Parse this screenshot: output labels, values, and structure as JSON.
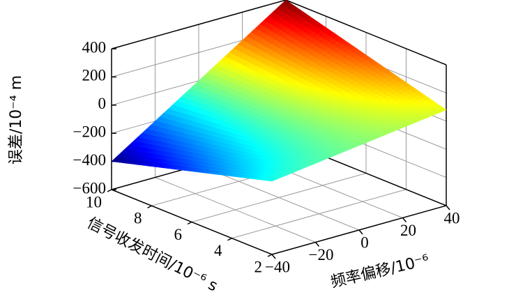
{
  "chart_data": {
    "type": "surface3d",
    "xlabel": "频率偏移/10⁻⁶",
    "ylabel": "信号收发时间/10⁻⁶ s",
    "zlabel": "误差/10⁻⁴ m",
    "x": [
      -40,
      -20,
      0,
      20,
      40
    ],
    "y": [
      2,
      4,
      6,
      8,
      10
    ],
    "z": [
      [
        -80,
        -40,
        0,
        40,
        80
      ],
      [
        -160,
        -80,
        0,
        80,
        160
      ],
      [
        -240,
        -120,
        0,
        120,
        240
      ],
      [
        -320,
        -160,
        0,
        160,
        320
      ],
      [
        -400,
        -200,
        0,
        200,
        400
      ]
    ],
    "xlim": [
      -40,
      40
    ],
    "ylim": [
      2,
      10
    ],
    "zlim": [
      -600,
      400
    ],
    "xticks": [
      {
        "value": -40,
        "label": "−40"
      },
      {
        "value": -20,
        "label": "−20"
      },
      0,
      20,
      40
    ],
    "yticks": [
      2,
      4,
      6,
      8,
      10
    ],
    "zticks": [
      {
        "value": -600,
        "label": "−600"
      },
      {
        "value": -400,
        "label": "−400"
      },
      {
        "value": -200,
        "label": "−200"
      },
      0,
      200,
      400
    ],
    "colormap": "jet",
    "grid": true
  }
}
